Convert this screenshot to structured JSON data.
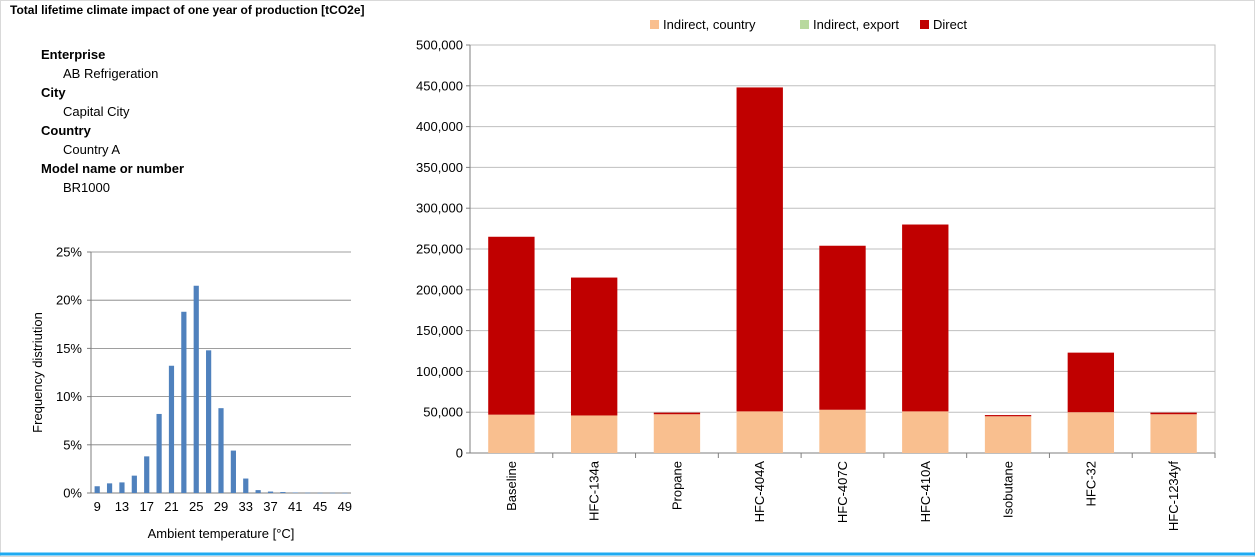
{
  "page": {
    "title": "Total lifetime climate impact of one year of production [tCO2e]"
  },
  "info": {
    "enterprise_label": "Enterprise",
    "enterprise_value": "AB Refrigeration",
    "city_label": "City",
    "city_value": "Capital City",
    "country_label": "Country",
    "country_value": "Country A",
    "model_label": "Model name or number",
    "model_value": "BR1000"
  },
  "colors": {
    "indirect_country": "#f9bf8f",
    "indirect_export": "#b8d99e",
    "direct": "#c00000",
    "histogram": "#4f81bd",
    "frame": "#1eaaf1",
    "grid": "#7f7f7f"
  },
  "chart_data": [
    {
      "type": "bar",
      "stacked": true,
      "title": "",
      "ylabel": "",
      "xlabel": "",
      "ylim": [
        0,
        500000
      ],
      "yticks": [
        "0",
        "50,000",
        "100,000",
        "150,000",
        "200,000",
        "250,000",
        "300,000",
        "350,000",
        "400,000",
        "450,000",
        "500,000"
      ],
      "categories": [
        "Baseline",
        "HFC-134a",
        "Propane",
        "HFC-404A",
        "HFC-407C",
        "HFC-410A",
        "Isobutane",
        "HFC-32",
        "HFC-1234yf"
      ],
      "legend_position": "top",
      "grid": true,
      "series": [
        {
          "name": "Indirect, country",
          "values": [
            47000,
            46000,
            47500,
            51000,
            53000,
            51000,
            45000,
            50000,
            47500
          ]
        },
        {
          "name": "Indirect, export",
          "values": [
            0,
            0,
            0,
            0,
            0,
            0,
            0,
            0,
            0
          ]
        },
        {
          "name": "Direct",
          "values": [
            218000,
            169000,
            2000,
            397000,
            201000,
            229000,
            1500,
            73000,
            2000
          ]
        }
      ]
    },
    {
      "type": "bar",
      "title": "",
      "xlabel": "Ambient temperature [°C]",
      "ylabel": "Frequency distriution",
      "ylim": [
        0,
        25
      ],
      "yticks": [
        "0%",
        "5%",
        "10%",
        "15%",
        "20%",
        "25%"
      ],
      "grid": true,
      "x": [
        9,
        11,
        13,
        15,
        17,
        19,
        21,
        23,
        25,
        27,
        29,
        31,
        33,
        35,
        37,
        39,
        41,
        43,
        45,
        47,
        49
      ],
      "xtick_labels": [
        "9",
        "13",
        "17",
        "21",
        "25",
        "29",
        "33",
        "37",
        "41",
        "45",
        "49"
      ],
      "values": [
        0.7,
        1.0,
        1.1,
        1.8,
        3.8,
        8.2,
        13.2,
        18.8,
        21.5,
        14.8,
        8.8,
        4.4,
        1.5,
        0.3,
        0.15,
        0.1,
        0.05,
        0.03,
        0.02,
        0.02,
        0.01
      ]
    }
  ]
}
